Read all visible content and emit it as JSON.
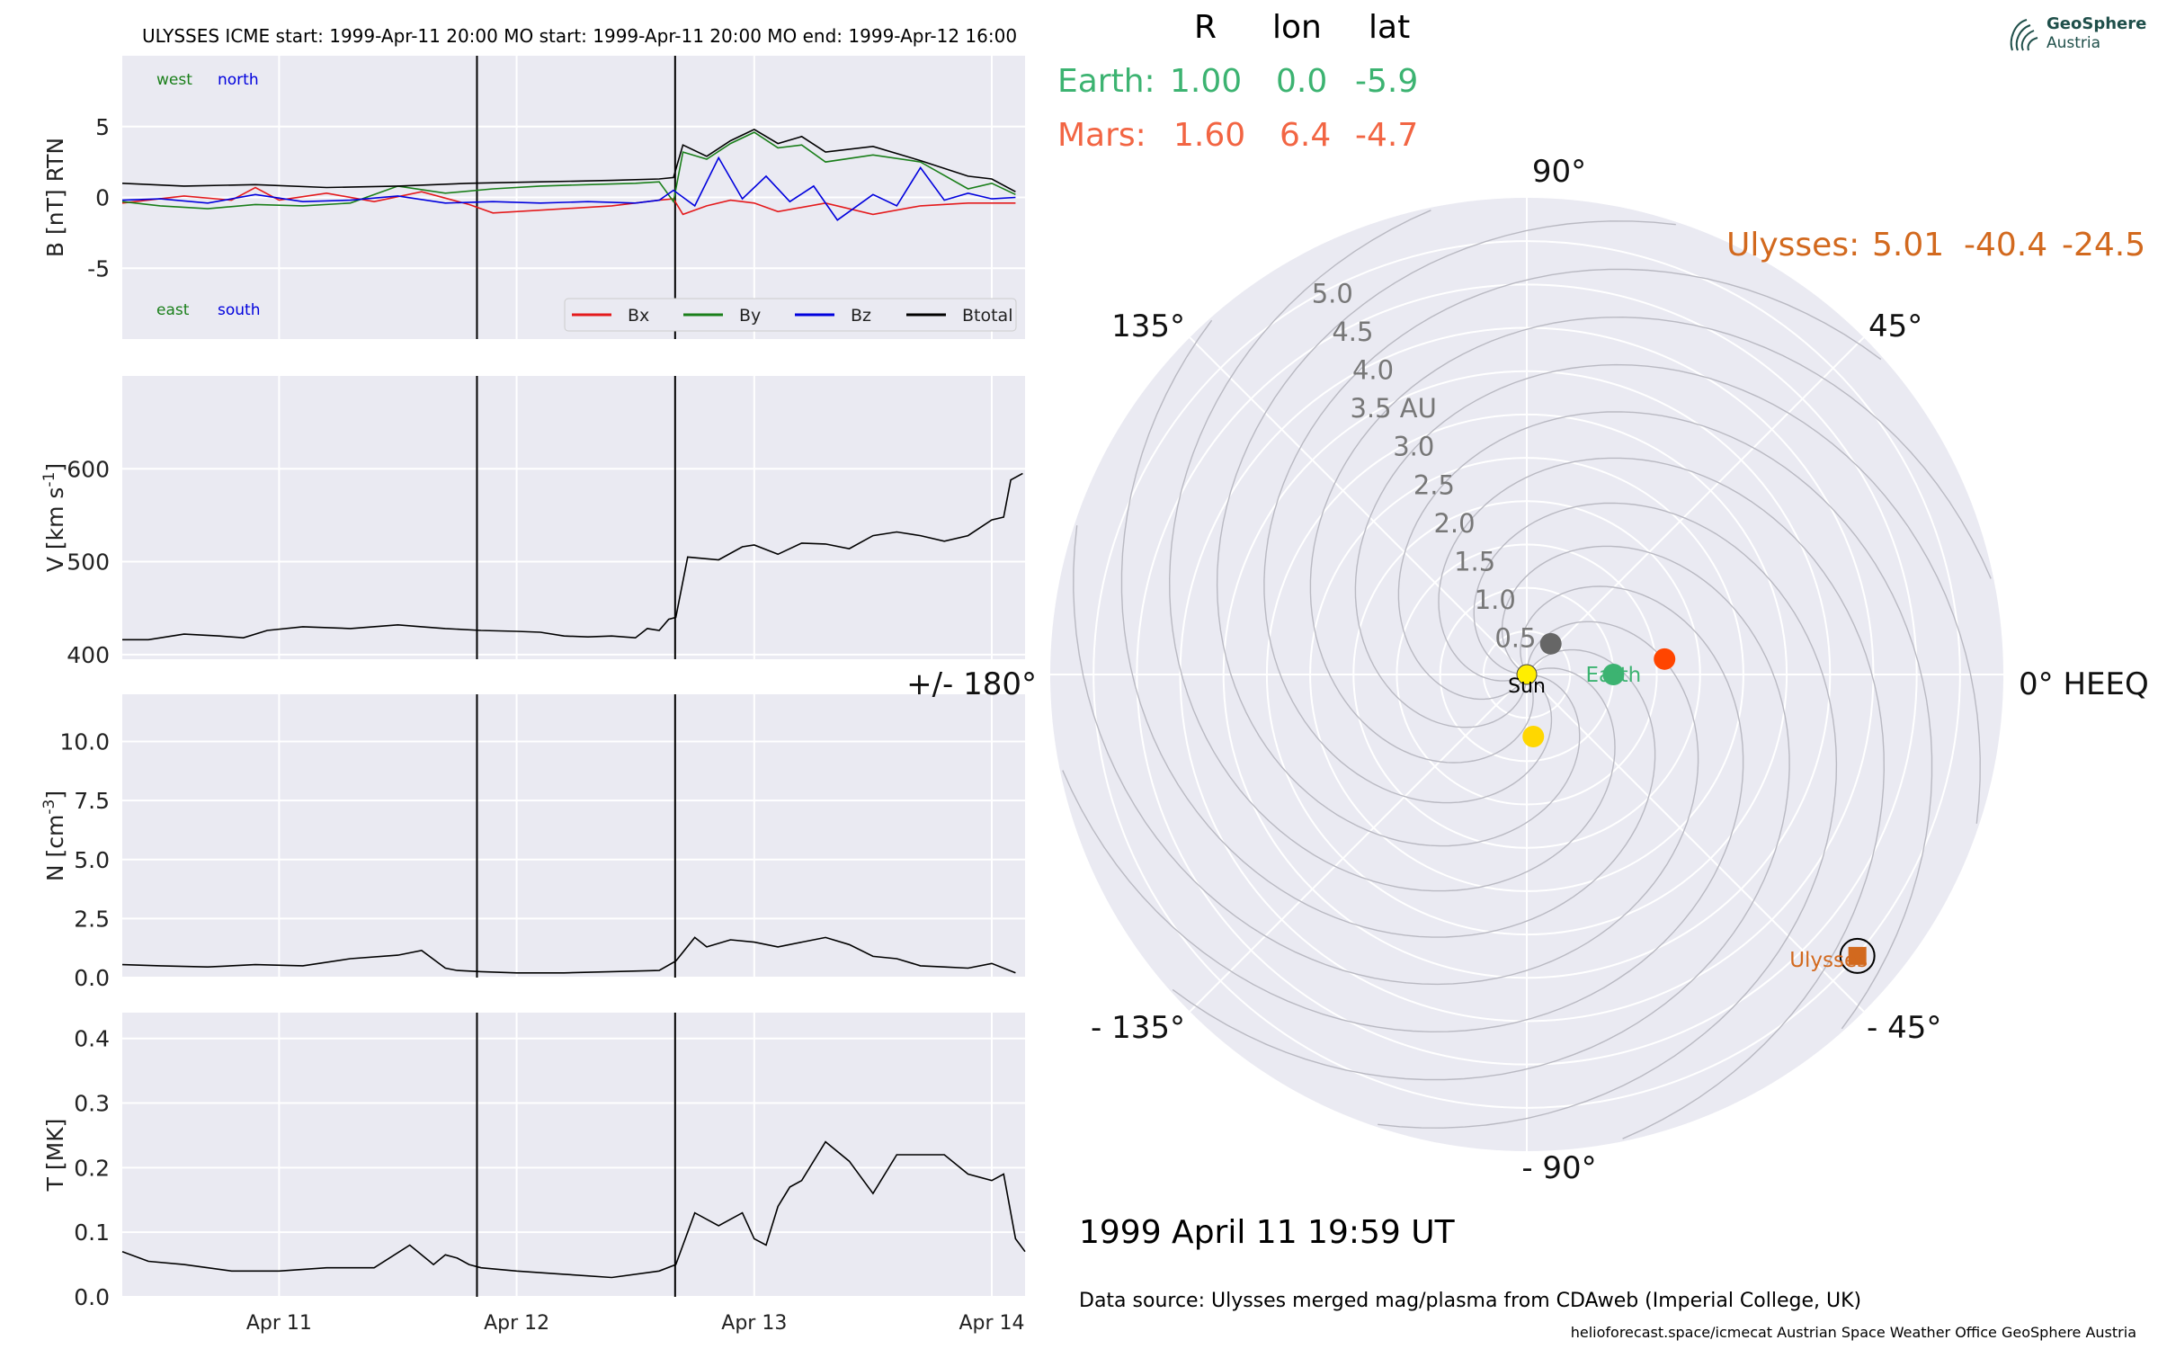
{
  "header": {
    "title": "ULYSSES    ICME start: 1999-Apr-11 20:00   MO start: 1999-Apr-11 20:00   MO end: 1999-Apr-12 16:00"
  },
  "logo": {
    "line1": "GeoSphere",
    "line2": "Austria"
  },
  "planet_table": {
    "headers": [
      "R",
      "lon",
      "lat"
    ],
    "rows": [
      {
        "name": "Earth:",
        "R": "1.00",
        "lon": "0.0",
        "lat": "-5.9",
        "color": "#3cb371"
      },
      {
        "name": "Mars:",
        "R": "1.60",
        "lon": "6.4",
        "lat": "-4.7",
        "color": "#f26543"
      },
      {
        "name": "Ulysses:",
        "R": "5.01",
        "lon": "-40.4",
        "lat": "-24.5",
        "color": "#d2691e"
      }
    ]
  },
  "date_text": "1999 April 11  19:59 UT",
  "source_text": "Data source: Ulysses merged mag/plasma from CDAweb (Imperial College, UK)",
  "footer_text": "helioforecast.space/icmecat   Austrian Space Weather Office   GeoSphere Austria",
  "colors": {
    "bx": "#e41a1c",
    "by": "#1a7f1a",
    "bz": "#0000dd",
    "btotal": "#000000",
    "panel_bg": "#eaeaf2",
    "earth": "#3cb371",
    "mars": "#ff4500",
    "ulysses": "#d2691e",
    "sun": "#ffee00"
  },
  "chart_data": [
    {
      "type": "line",
      "panel": "B",
      "ylabel": "B [nT] RTN",
      "ylim": [
        -10,
        10
      ],
      "yticks": [
        -5,
        0,
        5
      ],
      "x_unit": "day of April 1999",
      "xlim": [
        10.34,
        14.14
      ],
      "xticks": [
        11,
        12,
        13,
        14
      ],
      "xticklabels": [
        "Apr 11",
        "Apr 12",
        "Apr 13",
        "Apr 14"
      ],
      "annotations": {
        "top_left": [
          "west",
          "north"
        ],
        "bottom_left": [
          "east",
          "south"
        ]
      },
      "legend": [
        "Bx",
        "By",
        "Bz",
        "Btotal"
      ],
      "legend_position": "lower right",
      "vlines": [
        11.833,
        12.667
      ],
      "series": [
        {
          "name": "Bx",
          "x": [
            10.34,
            10.6,
            10.8,
            10.9,
            11.0,
            11.2,
            11.4,
            11.6,
            11.8,
            11.9,
            12.1,
            12.4,
            12.6,
            12.66,
            12.7,
            12.8,
            12.9,
            13.0,
            13.1,
            13.3,
            13.5,
            13.7,
            13.9,
            14.1
          ],
          "values": [
            -0.4,
            0.1,
            -0.2,
            0.7,
            -0.2,
            0.3,
            -0.3,
            0.4,
            -0.5,
            -1.1,
            -0.9,
            -0.6,
            -0.2,
            -0.1,
            -1.2,
            -0.6,
            -0.2,
            -0.4,
            -1.0,
            -0.4,
            -1.2,
            -0.6,
            -0.4,
            -0.4
          ]
        },
        {
          "name": "By",
          "x": [
            10.34,
            10.5,
            10.7,
            10.9,
            11.1,
            11.3,
            11.5,
            11.7,
            11.9,
            12.1,
            12.3,
            12.5,
            12.6,
            12.66,
            12.7,
            12.8,
            12.9,
            13.0,
            13.1,
            13.2,
            13.3,
            13.5,
            13.7,
            13.9,
            14.0,
            14.1
          ],
          "values": [
            -0.3,
            -0.6,
            -0.8,
            -0.5,
            -0.6,
            -0.4,
            0.8,
            0.3,
            0.6,
            0.8,
            0.9,
            1.0,
            1.1,
            -0.3,
            3.2,
            2.7,
            3.8,
            4.6,
            3.5,
            3.7,
            2.5,
            3.0,
            2.5,
            0.6,
            1.0,
            0.2
          ]
        },
        {
          "name": "Bz",
          "x": [
            10.34,
            10.5,
            10.7,
            10.9,
            11.1,
            11.3,
            11.5,
            11.7,
            11.9,
            12.1,
            12.3,
            12.5,
            12.6,
            12.66,
            12.75,
            12.85,
            12.95,
            13.05,
            13.15,
            13.25,
            13.35,
            13.5,
            13.6,
            13.7,
            13.8,
            13.9,
            14.0,
            14.1
          ],
          "values": [
            -0.2,
            -0.1,
            -0.4,
            0.2,
            -0.3,
            -0.2,
            0.1,
            -0.4,
            -0.3,
            -0.4,
            -0.3,
            -0.4,
            -0.2,
            0.5,
            -0.6,
            2.8,
            -0.1,
            1.5,
            -0.3,
            0.8,
            -1.6,
            0.2,
            -0.6,
            2.1,
            -0.2,
            0.3,
            -0.1,
            0.0
          ]
        },
        {
          "name": "Btotal",
          "x": [
            10.34,
            10.6,
            10.9,
            11.2,
            11.5,
            11.8,
            12.1,
            12.4,
            12.6,
            12.66,
            12.7,
            12.8,
            12.9,
            13.0,
            13.1,
            13.2,
            13.3,
            13.5,
            13.7,
            13.9,
            14.0,
            14.1
          ],
          "values": [
            1.0,
            0.8,
            0.9,
            0.7,
            0.8,
            1.0,
            1.1,
            1.2,
            1.3,
            1.4,
            3.7,
            2.9,
            4.0,
            4.8,
            3.8,
            4.3,
            3.2,
            3.6,
            2.6,
            1.5,
            1.3,
            0.4
          ]
        }
      ]
    },
    {
      "type": "line",
      "panel": "V",
      "ylabel": "V [km s$^{-1}$]",
      "ylim": [
        395,
        700
      ],
      "yticks": [
        400,
        500,
        600
      ],
      "xlim": [
        10.34,
        14.14
      ],
      "vlines": [
        11.833,
        12.667
      ],
      "series": [
        {
          "name": "V",
          "x": [
            10.34,
            10.45,
            10.6,
            10.75,
            10.85,
            10.95,
            11.1,
            11.3,
            11.5,
            11.6,
            11.7,
            11.85,
            12.0,
            12.1,
            12.2,
            12.3,
            12.4,
            12.5,
            12.55,
            12.6,
            12.64,
            12.67,
            12.72,
            12.85,
            12.95,
            13.0,
            13.1,
            13.2,
            13.3,
            13.4,
            13.5,
            13.6,
            13.7,
            13.8,
            13.9,
            14.0,
            14.05,
            14.08,
            14.13
          ],
          "values": [
            416,
            416,
            422,
            420,
            418,
            426,
            430,
            428,
            432,
            430,
            428,
            426,
            425,
            424,
            420,
            419,
            420,
            418,
            428,
            426,
            438,
            440,
            505,
            502,
            516,
            518,
            508,
            520,
            519,
            514,
            528,
            532,
            528,
            522,
            528,
            545,
            548,
            588,
            595
          ]
        }
      ]
    },
    {
      "type": "line",
      "panel": "N",
      "ylabel": "N [cm$^{-3}$]",
      "ylim": [
        0,
        12
      ],
      "yticks": [
        0.0,
        2.5,
        5.0,
        7.5,
        10.0
      ],
      "xlim": [
        10.34,
        14.14
      ],
      "vlines": [
        11.833,
        12.667
      ],
      "series": [
        {
          "name": "N",
          "x": [
            10.34,
            10.5,
            10.7,
            10.9,
            11.1,
            11.3,
            11.5,
            11.6,
            11.7,
            11.75,
            11.85,
            12.0,
            12.2,
            12.4,
            12.6,
            12.67,
            12.75,
            12.8,
            12.9,
            13.0,
            13.1,
            13.2,
            13.3,
            13.4,
            13.5,
            13.6,
            13.7,
            13.8,
            13.9,
            14.0,
            14.1
          ],
          "values": [
            0.55,
            0.5,
            0.45,
            0.55,
            0.5,
            0.8,
            0.95,
            1.15,
            0.4,
            0.3,
            0.25,
            0.2,
            0.2,
            0.25,
            0.3,
            0.7,
            1.7,
            1.3,
            1.6,
            1.5,
            1.3,
            1.5,
            1.7,
            1.4,
            0.9,
            0.8,
            0.5,
            0.45,
            0.4,
            0.6,
            0.2
          ]
        }
      ]
    },
    {
      "type": "line",
      "panel": "T",
      "ylabel": "T [MK]",
      "ylim": [
        0,
        0.44
      ],
      "yticks": [
        0.0,
        0.1,
        0.2,
        0.3,
        0.4
      ],
      "xlim": [
        10.34,
        14.14
      ],
      "vlines": [
        11.833,
        12.667
      ],
      "series": [
        {
          "name": "T",
          "x": [
            10.34,
            10.45,
            10.6,
            10.8,
            11.0,
            11.2,
            11.4,
            11.55,
            11.65,
            11.7,
            11.75,
            11.8,
            11.85,
            12.0,
            12.2,
            12.4,
            12.6,
            12.67,
            12.75,
            12.85,
            12.95,
            13.0,
            13.05,
            13.1,
            13.15,
            13.2,
            13.3,
            13.4,
            13.5,
            13.6,
            13.7,
            13.8,
            13.9,
            14.0,
            14.05,
            14.1,
            14.14
          ],
          "values": [
            0.07,
            0.055,
            0.05,
            0.04,
            0.04,
            0.045,
            0.045,
            0.08,
            0.05,
            0.065,
            0.06,
            0.05,
            0.045,
            0.04,
            0.035,
            0.03,
            0.04,
            0.05,
            0.13,
            0.11,
            0.13,
            0.09,
            0.08,
            0.14,
            0.17,
            0.18,
            0.24,
            0.21,
            0.16,
            0.22,
            0.22,
            0.22,
            0.19,
            0.18,
            0.19,
            0.09,
            0.07
          ]
        }
      ]
    },
    {
      "type": "polar",
      "panel": "orbit",
      "angle_labels": [
        "90°",
        "45°",
        "0° HEEQ",
        "- 45°",
        "- 90°",
        "- 135°",
        "+/- 180°",
        "135°"
      ],
      "angle_values": [
        90,
        45,
        0,
        -45,
        -90,
        -135,
        180,
        135
      ],
      "radial_labels": [
        "0.5",
        "1.0",
        "1.5",
        "2.0",
        "2.5",
        "3.0",
        "3.5 AU",
        "4.0",
        "4.5",
        "5.0"
      ],
      "radial_values": [
        0.5,
        1.0,
        1.5,
        2.0,
        2.5,
        3.0,
        3.5,
        4.0,
        4.5,
        5.0
      ],
      "rlim": [
        0,
        5.5
      ],
      "bodies": [
        {
          "name": "Sun",
          "r": 0.0,
          "lon": 0,
          "label": "Sun"
        },
        {
          "name": "Earth",
          "r": 1.0,
          "lon": 0.0,
          "label": "Earth"
        },
        {
          "name": "Mars",
          "r": 1.6,
          "lon": 6.4
        },
        {
          "name": "Ulysses",
          "r": 5.01,
          "lon": -40.4,
          "label": "Ulysses"
        },
        {
          "name": "grey-body",
          "r": 0.45,
          "lon": 52
        },
        {
          "name": "yellow-body",
          "r": 0.72,
          "lon": -84
        }
      ]
    }
  ]
}
